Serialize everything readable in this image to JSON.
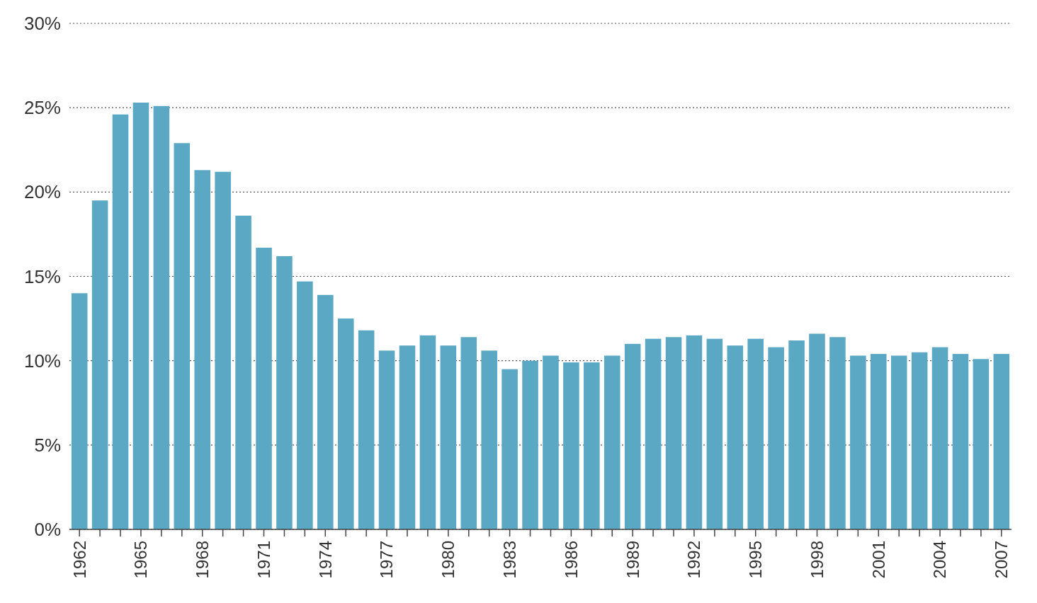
{
  "chart_data": {
    "type": "bar",
    "categories": [
      "1962",
      null,
      null,
      "1965",
      null,
      null,
      "1968",
      null,
      null,
      "1971",
      null,
      null,
      "1974",
      null,
      null,
      "1977",
      null,
      null,
      "1980",
      null,
      null,
      "1983",
      null,
      null,
      "1986",
      null,
      null,
      "1989",
      null,
      null,
      "1992",
      null,
      null,
      "1995",
      null,
      null,
      "1998",
      null,
      null,
      "2001",
      null,
      null,
      "2004",
      null,
      null,
      "2007"
    ],
    "values": [
      14.0,
      19.5,
      24.6,
      25.3,
      25.1,
      22.9,
      21.3,
      21.2,
      18.6,
      16.7,
      16.2,
      14.7,
      13.9,
      12.5,
      11.8,
      10.6,
      10.9,
      11.5,
      10.9,
      11.4,
      10.6,
      9.5,
      10.0,
      10.3,
      9.9,
      9.9,
      10.3,
      11.0,
      11.3,
      11.4,
      11.5,
      11.3,
      10.9,
      11.3,
      10.8,
      11.2,
      11.6,
      11.4,
      10.3,
      10.4,
      10.3,
      10.5,
      10.8,
      10.4,
      10.1,
      10.4
    ],
    "color": "#5aa8c4",
    "ylim": [
      0,
      30
    ],
    "yticks": [
      {
        "value": 0,
        "label": "0%"
      },
      {
        "value": 5,
        "label": "5%"
      },
      {
        "value": 10,
        "label": "10%"
      },
      {
        "value": 15,
        "label": "15%"
      },
      {
        "value": 20,
        "label": "20%"
      },
      {
        "value": 25,
        "label": "25%"
      },
      {
        "value": 30,
        "label": "30%"
      }
    ],
    "grid": "y"
  }
}
